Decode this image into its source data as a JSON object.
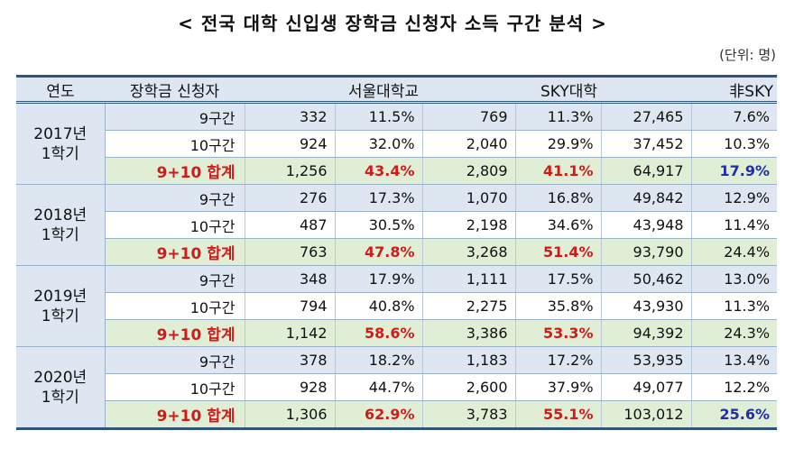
{
  "title": "< 전국 대학 신입생 장학금 신청자 소득 구간 분석 >",
  "unit": "(단위: 명)",
  "headers": {
    "year": "연도",
    "applicant": "장학금 신청자",
    "snu": "서울대학교",
    "sky": "SKY대학",
    "non_sky": "非SKY"
  },
  "groups": [
    {
      "year_line1": "2017년",
      "year_line2": "1학기",
      "rows": [
        {
          "label": "9구간",
          "snu_n": "332",
          "snu_p": "11.5%",
          "sky_n": "769",
          "sky_p": "11.3%",
          "non_n": "27,465",
          "non_p": "7.6%"
        },
        {
          "label": "10구간",
          "snu_n": "924",
          "snu_p": "32.0%",
          "sky_n": "2,040",
          "sky_p": "29.9%",
          "non_n": "37,452",
          "non_p": "10.3%"
        },
        {
          "label": "9+10 합계",
          "snu_n": "1,256",
          "snu_p": "43.4%",
          "sky_n": "2,809",
          "sky_p": "41.1%",
          "non_n": "64,917",
          "non_p": "17.9%"
        }
      ]
    },
    {
      "year_line1": "2018년",
      "year_line2": "1학기",
      "rows": [
        {
          "label": "9구간",
          "snu_n": "276",
          "snu_p": "17.3%",
          "sky_n": "1,070",
          "sky_p": "16.8%",
          "non_n": "49,842",
          "non_p": "12.9%"
        },
        {
          "label": "10구간",
          "snu_n": "487",
          "snu_p": "30.5%",
          "sky_n": "2,198",
          "sky_p": "34.6%",
          "non_n": "43,948",
          "non_p": "11.4%"
        },
        {
          "label": "9+10 합계",
          "snu_n": "763",
          "snu_p": "47.8%",
          "sky_n": "3,268",
          "sky_p": "51.4%",
          "non_n": "93,790",
          "non_p": "24.4%"
        }
      ]
    },
    {
      "year_line1": "2019년",
      "year_line2": "1학기",
      "rows": [
        {
          "label": "9구간",
          "snu_n": "348",
          "snu_p": "17.9%",
          "sky_n": "1,111",
          "sky_p": "17.5%",
          "non_n": "50,462",
          "non_p": "13.0%"
        },
        {
          "label": "10구간",
          "snu_n": "794",
          "snu_p": "40.8%",
          "sky_n": "2,275",
          "sky_p": "35.8%",
          "non_n": "43,930",
          "non_p": "11.3%"
        },
        {
          "label": "9+10 합계",
          "snu_n": "1,142",
          "snu_p": "58.6%",
          "sky_n": "3,386",
          "sky_p": "53.3%",
          "non_n": "94,392",
          "non_p": "24.3%"
        }
      ]
    },
    {
      "year_line1": "2020년",
      "year_line2": "1학기",
      "rows": [
        {
          "label": "9구간",
          "snu_n": "378",
          "snu_p": "18.2%",
          "sky_n": "1,183",
          "sky_p": "17.2%",
          "non_n": "53,935",
          "non_p": "13.4%"
        },
        {
          "label": "10구간",
          "snu_n": "928",
          "snu_p": "44.7%",
          "sky_n": "2,600",
          "sky_p": "37.9%",
          "non_n": "49,077",
          "non_p": "12.2%"
        },
        {
          "label": "9+10 합계",
          "snu_n": "1,306",
          "snu_p": "62.9%",
          "sky_n": "3,783",
          "sky_p": "55.1%",
          "non_n": "103,012",
          "non_p": "25.6%"
        }
      ]
    }
  ]
}
